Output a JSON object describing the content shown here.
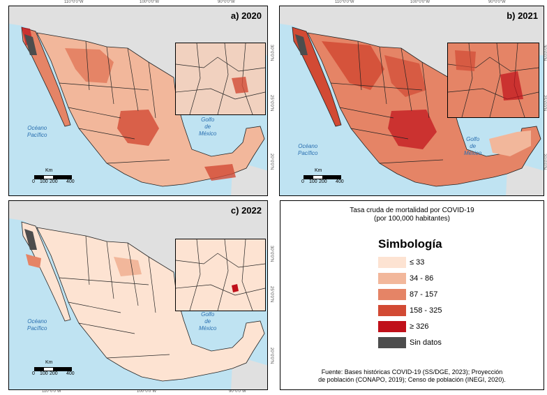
{
  "ticks": {
    "top_left": [
      "110°0'0\"W",
      "100°0'0\"W",
      "90°0'0\"W"
    ],
    "top_right": [
      "110°0'0\"W",
      "100°0'0\"W",
      "90°0'0\"W"
    ],
    "bottom": [
      "110°0'0\"W",
      "100°0'0\"W",
      "90°0'0\"W"
    ],
    "lat_a": [
      "30°0'0\"N",
      "25°0'0\"N",
      "20°0'0\"N"
    ],
    "lat_b": [
      "30°0'0\"N",
      "25°0'0\"N",
      "20°0'0\"N"
    ],
    "lat_c": [
      "30°0'0\"N",
      "25°0'0\"N",
      "20°0'0\"N"
    ]
  },
  "panels": [
    {
      "label": "a) 2020",
      "ocean": "Océano\nPacífico",
      "gulf": "Golfo\nde\nMéxico",
      "scale_title": "Km",
      "scale_nums": [
        "0",
        "100",
        "200",
        "400"
      ]
    },
    {
      "label": "b) 2021",
      "ocean": "Océano\nPacífico",
      "gulf": "Golfo\nde\nMéxico",
      "scale_title": "Km",
      "scale_nums": [
        "0",
        "100",
        "200",
        "400"
      ]
    },
    {
      "label": "c) 2022",
      "ocean": "Océano\nPacífico",
      "gulf": "Golfo\nde\nMéxico",
      "scale_title": "Km",
      "scale_nums": [
        "0",
        "100",
        "200",
        "400"
      ]
    }
  ],
  "legend": {
    "title_line1": "Tasa cruda de mortalidad por  COVID-19",
    "title_line2": "(por 100,000 habitantes)",
    "symbology": "Simbología",
    "classes": [
      {
        "label": "≤ 33",
        "color": "#fde3d2"
      },
      {
        "label": "34 - 86",
        "color": "#f2b79b"
      },
      {
        "label": "87 - 157",
        "color": "#e58466"
      },
      {
        "label": "158 - 325",
        "color": "#d24a34"
      },
      {
        "label": "≥ 326",
        "color": "#c0101a"
      },
      {
        "label": "Sin datos",
        "color": "#4d4d4d"
      }
    ],
    "source_line1": "Fuente: Bases históricas COVID-19 (SS/DGE, 2023); Proyección",
    "source_line2": "de población (CONAPO, 2019); Censo de población (INEGI, 2020)."
  },
  "colors": {
    "sea": "#bfe3f2",
    "land_outside": "#e0e0e0",
    "border": "#222222"
  }
}
